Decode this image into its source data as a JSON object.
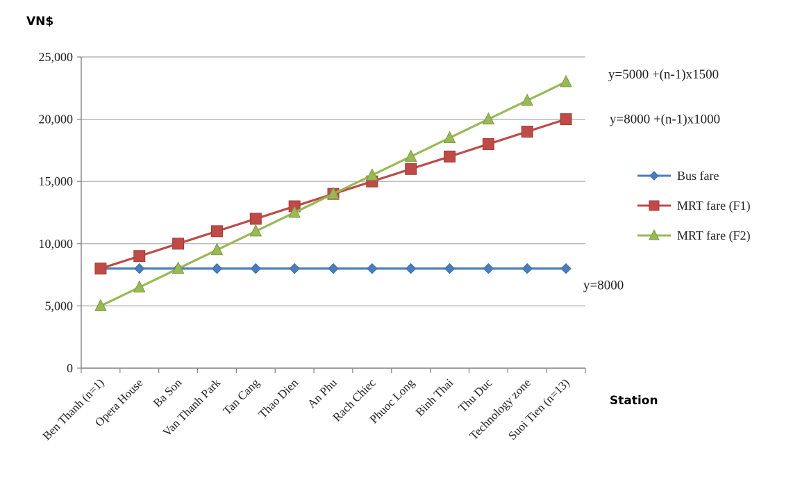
{
  "chart_data": {
    "type": "line",
    "ylabel": "VN$",
    "xlabel": "Station",
    "categories": [
      "Ben Thanh (n=1)",
      "Opera House",
      "Ba Son",
      "Van Thanh Park",
      "Tan Cang",
      "Thao Dien",
      "An Phu",
      "Rach Chiec",
      "Phuoc Long",
      "Binh Thai",
      "Thu Duc",
      "Technology zone",
      "Suoi Tien (n=13)"
    ],
    "ylim": [
      0,
      25000
    ],
    "yticks": [
      0,
      5000,
      10000,
      15000,
      20000,
      25000
    ],
    "ytick_labels": [
      "0",
      "5,000",
      "10,000",
      "15,000",
      "20,000",
      "25,000"
    ],
    "grid": true,
    "legend_position": "right",
    "series": [
      {
        "name": "Bus fare",
        "color": "#4a7ebb",
        "marker": "diamond",
        "values": [
          8000,
          8000,
          8000,
          8000,
          8000,
          8000,
          8000,
          8000,
          8000,
          8000,
          8000,
          8000,
          8000
        ]
      },
      {
        "name": "MRT fare (F1)",
        "color": "#be4b48",
        "marker": "square",
        "values": [
          8000,
          9000,
          10000,
          11000,
          12000,
          13000,
          14000,
          15000,
          16000,
          17000,
          18000,
          19000,
          20000
        ]
      },
      {
        "name": "MRT fare (F2)",
        "color": "#98b954",
        "marker": "triangle",
        "values": [
          5000,
          6500,
          8000,
          9500,
          11000,
          12500,
          14000,
          15500,
          17000,
          18500,
          20000,
          21500,
          23000
        ]
      }
    ],
    "annotations": [
      {
        "text": "y=5000 +(n-1)x1500",
        "y": 23000
      },
      {
        "text": "y=8000 +(n-1)x1000",
        "y": 20000
      },
      {
        "text": "y=8000",
        "y": 8000
      }
    ]
  }
}
